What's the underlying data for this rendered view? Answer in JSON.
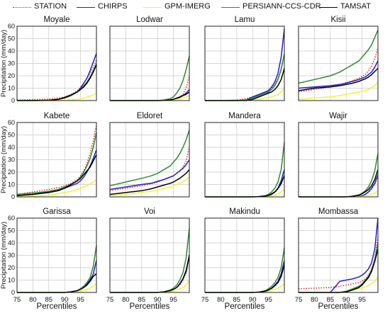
{
  "chart_data": {
    "type": "line",
    "layout": "small-multiples 3x4",
    "legend_position": "top",
    "grid": true,
    "xlabel": "Percentiles",
    "ylabel": "Precipitation (mm/day)",
    "x_ticks": [
      75,
      80,
      85,
      90,
      95
    ],
    "xlim": [
      75,
      100
    ],
    "y_ticks": [
      0,
      10,
      20,
      30,
      40,
      50,
      60
    ],
    "ylim": [
      0,
      60
    ],
    "percentiles": [
      75,
      80,
      85,
      88,
      90,
      92,
      94,
      95,
      96,
      97,
      98,
      99,
      100
    ],
    "series_styles": [
      {
        "name": "STATION",
        "color": "#e31a1c",
        "dash": "dotted"
      },
      {
        "name": "CHIRPS",
        "color": "#1f1fcf",
        "dash": "solid"
      },
      {
        "name": "GPM-IMERG",
        "color": "#f2f23a",
        "dash": "solid"
      },
      {
        "name": "PERSIANN-CCS-CDR",
        "color": "#2e8b2e",
        "dash": "solid"
      },
      {
        "name": "TAMSAT",
        "color": "#000000",
        "dash": "solid"
      }
    ],
    "panels": [
      {
        "title": "Moyale",
        "series": {
          "STATION": [
            0.5,
            0.8,
            1.2,
            2,
            3,
            5,
            8,
            11,
            14,
            18,
            22,
            27,
            33
          ],
          "CHIRPS": [
            0,
            0,
            0.3,
            1,
            2,
            4,
            7,
            10,
            14,
            18,
            24,
            31,
            38
          ],
          "GPM-IMERG": [
            0,
            0,
            0,
            0,
            0.2,
            0.5,
            1,
            1.5,
            2,
            3,
            3.5,
            4.5,
            6
          ],
          "PERSIANN-CCS-CDR": [
            0,
            0,
            0.3,
            1,
            2,
            4,
            7,
            9,
            12,
            15,
            19,
            24,
            30
          ],
          "TAMSAT": [
            0,
            0,
            0.2,
            1,
            2.5,
            4.5,
            7,
            9,
            11,
            14,
            18,
            23,
            29
          ]
        }
      },
      {
        "title": "Lodwar",
        "series": {
          "STATION": [
            0,
            0,
            0,
            0,
            0,
            0.2,
            0.5,
            1,
            2,
            3,
            5,
            10,
            20
          ],
          "CHIRPS": [
            0,
            0,
            0,
            0,
            0,
            0.2,
            0.5,
            1,
            1.5,
            2.5,
            4,
            6,
            9
          ],
          "GPM-IMERG": [
            0,
            0,
            0,
            0,
            0,
            0,
            0.2,
            0.5,
            1,
            1.5,
            2,
            3,
            4
          ],
          "PERSIANN-CCS-CDR": [
            0,
            0,
            0,
            0,
            0,
            0.5,
            1.5,
            3,
            6,
            10,
            16,
            25,
            36
          ],
          "TAMSAT": [
            0,
            0,
            0,
            0,
            0,
            0.2,
            0.5,
            1,
            2,
            3,
            4,
            5,
            7
          ]
        }
      },
      {
        "title": "Lamu",
        "series": {
          "STATION": [
            0,
            0,
            0.5,
            1.5,
            3,
            5,
            7,
            8,
            10,
            13,
            18,
            26,
            36
          ],
          "CHIRPS": [
            0,
            0,
            0,
            0.5,
            3,
            5,
            7,
            8,
            11,
            15,
            22,
            35,
            58
          ],
          "GPM-IMERG": [
            0,
            0,
            0,
            0,
            0.5,
            1,
            2,
            2.5,
            3,
            4,
            5,
            7,
            10
          ],
          "PERSIANN-CCS-CDR": [
            0,
            0,
            0,
            0.5,
            2,
            4,
            6,
            7,
            9,
            12,
            17,
            25,
            38
          ],
          "TAMSAT": [
            0,
            0,
            0,
            0,
            1,
            3,
            5,
            6,
            7,
            9,
            12,
            17,
            26
          ]
        }
      },
      {
        "title": "Kisii",
        "series": {
          "STATION": [
            7,
            9,
            11,
            13,
            14.5,
            16,
            18,
            19.5,
            21,
            24,
            28,
            34,
            42
          ],
          "CHIRPS": [
            10,
            11,
            12,
            13,
            14,
            15.5,
            17,
            18,
            19,
            21,
            23,
            27,
            32
          ],
          "GPM-IMERG": [
            1,
            2,
            3,
            4,
            5,
            6,
            7,
            7.5,
            8,
            9,
            10.5,
            12,
            15
          ],
          "PERSIANN-CCS-CDR": [
            14,
            17,
            20,
            23,
            26,
            29,
            32,
            35,
            38,
            41,
            45,
            51,
            57
          ],
          "TAMSAT": [
            8,
            10,
            11,
            12,
            13,
            14,
            15.5,
            16.5,
            17.5,
            19,
            21,
            23.5,
            26
          ]
        }
      },
      {
        "title": "Kabete",
        "series": {
          "STATION": [
            2,
            4,
            6,
            7.5,
            9,
            11,
            14,
            17,
            21,
            27,
            35,
            45,
            58
          ],
          "CHIRPS": [
            1,
            2,
            4,
            5.5,
            7,
            9,
            11,
            13,
            16,
            20,
            25,
            31,
            38
          ],
          "GPM-IMERG": [
            0,
            0.5,
            1.5,
            2.5,
            3.5,
            4.5,
            6,
            7,
            8,
            9,
            10.5,
            12,
            14
          ],
          "PERSIANN-CCS-CDR": [
            2,
            3,
            4.5,
            6,
            8,
            10,
            13,
            16,
            20,
            25,
            31,
            40,
            52
          ],
          "TAMSAT": [
            1,
            2,
            3.5,
            5,
            7,
            10,
            13,
            15,
            18,
            21,
            24,
            29,
            34
          ]
        }
      },
      {
        "title": "Eldoret",
        "series": {
          "STATION": [
            5,
            7,
            9,
            10.5,
            12,
            14,
            16,
            17,
            19,
            21,
            24,
            29,
            40
          ],
          "CHIRPS": [
            6,
            8,
            10,
            11,
            12.5,
            14,
            16,
            17,
            19,
            21,
            23,
            26,
            30
          ],
          "GPM-IMERG": [
            1,
            2,
            3.5,
            4.5,
            5.5,
            7,
            8,
            9,
            10,
            11,
            12,
            14,
            16
          ],
          "PERSIANN-CCS-CDR": [
            9,
            12,
            15,
            17,
            19,
            22,
            25,
            28,
            31,
            35,
            40,
            46,
            54
          ],
          "TAMSAT": [
            2,
            3.5,
            5,
            6.5,
            8,
            9.5,
            11,
            12,
            13.5,
            15,
            17,
            19,
            22
          ]
        }
      },
      {
        "title": "Mandera",
        "series": {
          "STATION": [
            0,
            0,
            0,
            0,
            0,
            0,
            0.5,
            1,
            2,
            3.5,
            6,
            10,
            18
          ],
          "CHIRPS": [
            0,
            0,
            0,
            0,
            0,
            0.2,
            0.5,
            1,
            2,
            4,
            7,
            13,
            22
          ],
          "GPM-IMERG": [
            0,
            0,
            0,
            0,
            0,
            0,
            0.2,
            0.4,
            0.8,
            1.5,
            2.5,
            4,
            6
          ],
          "PERSIANN-CCS-CDR": [
            0,
            0,
            0,
            0,
            0,
            0.3,
            1,
            2,
            4,
            7,
            12,
            22,
            44
          ],
          "TAMSAT": [
            0,
            0,
            0,
            0,
            0,
            0.2,
            0.6,
            1.2,
            2.5,
            4,
            7,
            11,
            17
          ]
        }
      },
      {
        "title": "Wajir",
        "series": {
          "STATION": [
            0,
            0,
            0,
            0,
            0,
            0.2,
            0.6,
            1,
            2,
            3.5,
            6,
            10,
            16
          ],
          "CHIRPS": [
            0,
            0,
            0,
            0,
            0,
            0.2,
            0.6,
            1,
            2,
            4,
            7,
            11,
            18
          ],
          "GPM-IMERG": [
            0,
            0,
            0,
            0,
            0,
            0,
            0.2,
            0.4,
            0.8,
            1.2,
            2,
            3,
            5
          ],
          "PERSIANN-CCS-CDR": [
            0,
            0,
            0,
            0,
            0,
            0.5,
            1.5,
            3,
            5,
            8,
            13,
            21,
            35
          ],
          "TAMSAT": [
            0,
            0,
            0,
            0,
            0,
            0.5,
            1.5,
            2.5,
            4,
            6,
            9,
            14,
            22
          ]
        }
      },
      {
        "title": "Garissa",
        "series": {
          "STATION": [
            0,
            0,
            0,
            0,
            0,
            0.5,
            1.5,
            3,
            5,
            8,
            11,
            14,
            16
          ],
          "CHIRPS": [
            0,
            0,
            0,
            0,
            0,
            0.5,
            1.5,
            3,
            5,
            7,
            10,
            15,
            26
          ],
          "GPM-IMERG": [
            0,
            0,
            0,
            0,
            0,
            0.2,
            0.5,
            1,
            1.5,
            2.5,
            3.5,
            5,
            7
          ],
          "PERSIANN-CCS-CDR": [
            0,
            0,
            0,
            0,
            0,
            0.5,
            1.5,
            3,
            5,
            8,
            12,
            21,
            38
          ],
          "TAMSAT": [
            0,
            0,
            0,
            0,
            0,
            0.5,
            1.5,
            2.5,
            4,
            6,
            9,
            13,
            15
          ]
        }
      },
      {
        "title": "Voi",
        "series": {
          "STATION": [
            0,
            0,
            0,
            0,
            0,
            0.5,
            1.5,
            2.5,
            4,
            6,
            10,
            16,
            28
          ],
          "CHIRPS": [
            0,
            0,
            0,
            0,
            0,
            0.5,
            1.5,
            2.5,
            4,
            7,
            11,
            18,
            30
          ],
          "GPM-IMERG": [
            0,
            0,
            0,
            0,
            0,
            0.2,
            0.5,
            1,
            2,
            3,
            4,
            6,
            10
          ],
          "PERSIANN-CCS-CDR": [
            0,
            0,
            0,
            0,
            0,
            0.5,
            2,
            3.5,
            6,
            10,
            16,
            28,
            52
          ],
          "TAMSAT": [
            0,
            0,
            0,
            0,
            0,
            0.5,
            1.5,
            2.5,
            4,
            7,
            11,
            17,
            30
          ]
        }
      },
      {
        "title": "Makindu",
        "series": {
          "STATION": [
            0,
            0,
            0,
            0,
            0,
            0.3,
            1,
            2,
            3,
            5,
            8,
            14,
            24
          ],
          "CHIRPS": [
            0,
            0,
            0,
            0,
            0,
            0.3,
            1,
            2,
            3.5,
            6,
            9,
            15,
            26
          ],
          "GPM-IMERG": [
            0,
            0,
            0,
            0,
            0,
            0.2,
            0.5,
            1,
            1.5,
            2.5,
            3.5,
            5,
            7
          ],
          "PERSIANN-CCS-CDR": [
            0,
            0,
            0,
            0,
            0,
            0.3,
            1.5,
            3,
            5,
            8,
            12,
            20,
            36
          ],
          "TAMSAT": [
            0,
            0,
            0,
            0,
            0,
            0.3,
            1,
            2,
            3.5,
            5.5,
            8,
            13,
            22
          ]
        }
      },
      {
        "title": "Mombassa",
        "series": {
          "STATION": [
            3,
            3.5,
            4,
            5,
            6,
            7,
            8,
            9,
            11,
            14,
            19,
            27,
            45
          ],
          "CHIRPS": [
            0,
            0,
            0,
            9,
            10,
            11,
            12.5,
            14,
            16,
            19,
            24,
            35,
            60
          ],
          "GPM-IMERG": [
            0,
            0,
            0,
            0.5,
            1,
            2,
            3,
            3.5,
            4.5,
            5.5,
            7,
            9,
            13
          ],
          "PERSIANN-CCS-CDR": [
            0,
            0,
            0,
            0,
            1,
            3,
            5,
            7,
            10,
            13,
            18,
            26,
            40
          ],
          "TAMSAT": [
            0,
            0,
            0,
            0,
            0.5,
            2,
            4,
            6,
            9,
            12,
            17,
            25,
            35
          ]
        }
      }
    ]
  }
}
